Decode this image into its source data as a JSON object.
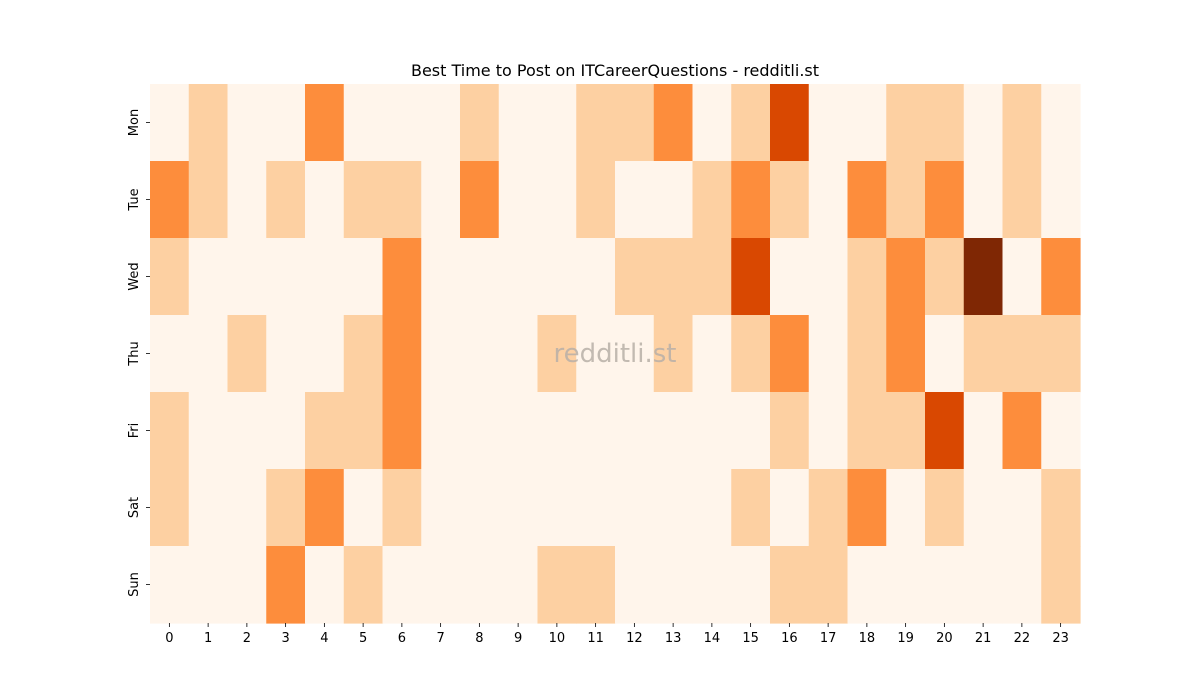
{
  "chart_data": {
    "type": "heatmap",
    "title": "Best Time to Post on ITCareerQuestions - redditli.st",
    "watermark": "redditli.st",
    "x": [
      "0",
      "1",
      "2",
      "3",
      "4",
      "5",
      "6",
      "7",
      "8",
      "9",
      "10",
      "11",
      "12",
      "13",
      "14",
      "15",
      "16",
      "17",
      "18",
      "19",
      "20",
      "21",
      "22",
      "23"
    ],
    "y": [
      "Mon",
      "Tue",
      "Wed",
      "Thu",
      "Fri",
      "Sat",
      "Sun"
    ],
    "color_scale": "Oranges",
    "levels": 4,
    "colors": [
      "#fff5eb",
      "#fdd0a2",
      "#fd8d3c",
      "#d94801",
      "#7f2704"
    ],
    "grid": false,
    "values": [
      [
        0,
        1,
        0,
        0,
        2,
        0,
        0,
        0,
        1,
        0,
        0,
        1,
        1,
        2,
        0,
        1,
        3,
        0,
        0,
        1,
        1,
        0,
        1,
        0
      ],
      [
        2,
        1,
        0,
        1,
        0,
        1,
        1,
        0,
        2,
        0,
        0,
        1,
        0,
        0,
        1,
        2,
        1,
        0,
        2,
        1,
        2,
        0,
        1,
        0
      ],
      [
        1,
        0,
        0,
        0,
        0,
        0,
        2,
        0,
        0,
        0,
        0,
        0,
        1,
        1,
        1,
        3,
        0,
        0,
        1,
        2,
        1,
        4,
        0,
        2
      ],
      [
        0,
        0,
        1,
        0,
        0,
        1,
        2,
        0,
        0,
        0,
        1,
        0,
        0,
        1,
        0,
        1,
        2,
        0,
        1,
        2,
        0,
        1,
        1,
        1
      ],
      [
        1,
        0,
        0,
        0,
        1,
        1,
        2,
        0,
        0,
        0,
        0,
        0,
        0,
        0,
        0,
        0,
        1,
        0,
        1,
        1,
        3,
        0,
        2,
        0
      ],
      [
        1,
        0,
        0,
        1,
        2,
        0,
        1,
        0,
        0,
        0,
        0,
        0,
        0,
        0,
        0,
        1,
        0,
        1,
        2,
        0,
        1,
        0,
        0,
        1
      ],
      [
        0,
        0,
        0,
        2,
        0,
        1,
        0,
        0,
        0,
        0,
        1,
        1,
        0,
        0,
        0,
        0,
        1,
        1,
        0,
        0,
        0,
        0,
        0,
        1
      ]
    ]
  }
}
